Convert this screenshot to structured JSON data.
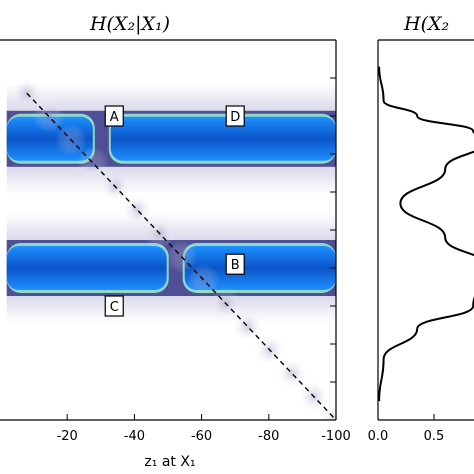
{
  "chart_data": [
    {
      "type": "heatmap",
      "title": "H(X₂|X₁)",
      "xlabel": "z₁ at X₁",
      "ylabel": "",
      "xlim": [
        0,
        -100
      ],
      "ylim": [
        0,
        1
      ],
      "x_ticks": [
        -20,
        -40,
        -60,
        -80,
        -100
      ],
      "x_tick_labels": [
        "-20",
        "-40",
        "-60",
        "-80",
        "-100"
      ],
      "colormap": [
        "#ffffff",
        "#d8d8ea",
        "#6a6aa8",
        "#8fd8c8",
        "#1e90ff",
        "#0a54c8"
      ],
      "bands": [
        {
          "y_center": 0.74,
          "x_start": -2,
          "x_end": -100,
          "gap_x": -30
        },
        {
          "y_center": 0.4,
          "x_start": -2,
          "x_end": -100,
          "gap_x": -52
        }
      ],
      "diagonal_line": {
        "style": "dashed",
        "from": [
          -8,
          0.86
        ],
        "to": [
          -100,
          0.0
        ]
      },
      "annotations": [
        {
          "text": "A",
          "x": -34,
          "y": 0.8
        },
        {
          "text": "D",
          "x": -70,
          "y": 0.8
        },
        {
          "text": "B",
          "x": -70,
          "y": 0.41
        },
        {
          "text": "C",
          "x": -34,
          "y": 0.3
        }
      ]
    },
    {
      "type": "line",
      "title": "H(X₂",
      "xlabel": "",
      "ylabel": "",
      "xlim": [
        0,
        1.0
      ],
      "ylim": [
        0,
        1
      ],
      "x_ticks": [
        0.0,
        0.5
      ],
      "x_tick_labels": [
        "0.0",
        "0.5"
      ],
      "series": [
        {
          "x": [
            0.01,
            0.05,
            0.35,
            0.85,
            1.0,
            0.6,
            0.2,
            0.6,
            1.0,
            0.85,
            0.35,
            0.05,
            0.01
          ],
          "y": [
            0.93,
            0.84,
            0.8,
            0.76,
            0.74,
            0.66,
            0.57,
            0.48,
            0.4,
            0.3,
            0.24,
            0.16,
            0.05
          ]
        }
      ]
    }
  ]
}
